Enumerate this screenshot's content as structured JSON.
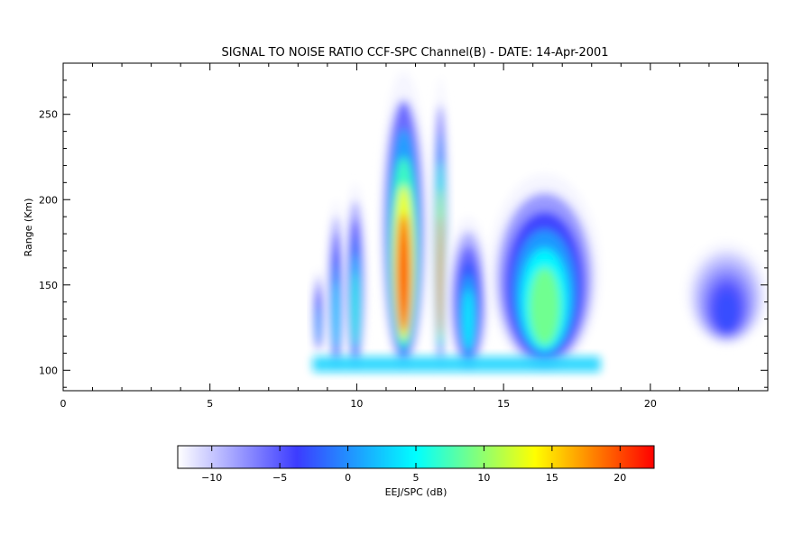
{
  "chart_data": {
    "type": "heatmap",
    "title": "SIGNAL TO NOISE RATIO CCF-SPC Channel(B) - DATE: 14-Apr-2001",
    "xlabel": "",
    "ylabel": "Range (Km)",
    "xlim": [
      0,
      24
    ],
    "ylim": [
      88,
      280
    ],
    "x_ticks": [
      0,
      5,
      10,
      15,
      20
    ],
    "y_ticks": [
      100,
      150,
      200,
      250
    ],
    "grid": false,
    "colorbar": {
      "label": "EEJ/SPC (dB)",
      "range": [
        -12.5,
        22.5
      ],
      "ticks": [
        -10,
        -5,
        0,
        5,
        10,
        15,
        20
      ],
      "colors": [
        "#ffffff",
        "#3c3cff",
        "#00ffff",
        "#ffff00",
        "#ff0000"
      ]
    },
    "regions": [
      {
        "x_range": [
          8.5,
          8.9
        ],
        "range_km": [
          110,
          160
        ],
        "peak_snr_db": 2
      },
      {
        "x_range": [
          9.0,
          9.6
        ],
        "range_km": [
          100,
          200
        ],
        "peak_snr_db": 4
      },
      {
        "x_range": [
          9.6,
          10.3
        ],
        "range_km": [
          100,
          210
        ],
        "peak_snr_db": 6
      },
      {
        "x_range": [
          10.8,
          12.4
        ],
        "range_km": [
          100,
          275
        ],
        "peak_snr_db": 20
      },
      {
        "x_range": [
          12.6,
          13.1
        ],
        "range_km": [
          100,
          272
        ],
        "peak_snr_db": 18
      },
      {
        "x_range": [
          13.1,
          14.5
        ],
        "range_km": [
          100,
          190
        ],
        "peak_snr_db": 4
      },
      {
        "x_range": [
          14.5,
          18.3
        ],
        "range_km": [
          100,
          215
        ],
        "peak_snr_db": 9
      },
      {
        "x_range": [
          21.2,
          24.0
        ],
        "range_km": [
          115,
          175
        ],
        "peak_snr_db": -3
      }
    ]
  }
}
